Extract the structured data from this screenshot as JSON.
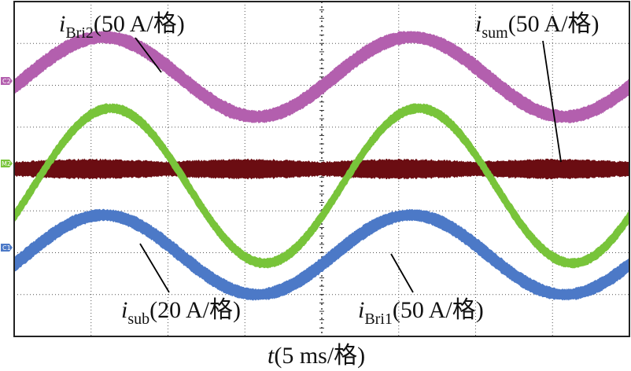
{
  "chart_data": {
    "type": "line",
    "title": "",
    "xlabel": "t(5 ms/格)",
    "xlabel_var": "t",
    "xlabel_unit": "(5 ms/格)",
    "ylabel": "",
    "grid": true,
    "x_divisions": 8,
    "y_divisions": 8,
    "x_unit": "ms",
    "x_per_div": 5,
    "xlim": [
      0,
      40
    ],
    "channel_tags": [
      "C2",
      "M2",
      "C1"
    ],
    "series": [
      {
        "name": "i_Bri2",
        "label_main": "i",
        "label_sub": "Bri2",
        "label_scale": "(50 A/格)",
        "channel": "C2",
        "color": "#b35fae",
        "offset_div": 6.2,
        "amplitude_div": 0.95,
        "period_ms": 20,
        "peak_ms": 5.8,
        "noise_div": 0.15
      },
      {
        "name": "i_sum",
        "label_main": "i",
        "label_sub": "sum",
        "label_scale": "(50 A/格)",
        "channel": "M2",
        "color": "#6b0d12",
        "offset_div": 4.0,
        "amplitude_div": 0.0,
        "period_ms": 20,
        "peak_ms": 0,
        "noise_div": 0.18
      },
      {
        "name": "i_sub",
        "label_main": "i",
        "label_sub": "sub",
        "label_scale": "(20 A/格)",
        "channel": "M2",
        "color": "#78c43a",
        "offset_div": 3.6,
        "amplitude_div": 1.85,
        "period_ms": 20,
        "peak_ms": 6.3,
        "noise_div": 0.12
      },
      {
        "name": "i_Bri1",
        "label_main": "i",
        "label_sub": "Bri1",
        "label_scale": "(50 A/格)",
        "channel": "C1",
        "color": "#4c79c7",
        "offset_div": 1.95,
        "amplitude_div": 0.95,
        "period_ms": 20,
        "peak_ms": 5.8,
        "noise_div": 0.14
      }
    ]
  }
}
